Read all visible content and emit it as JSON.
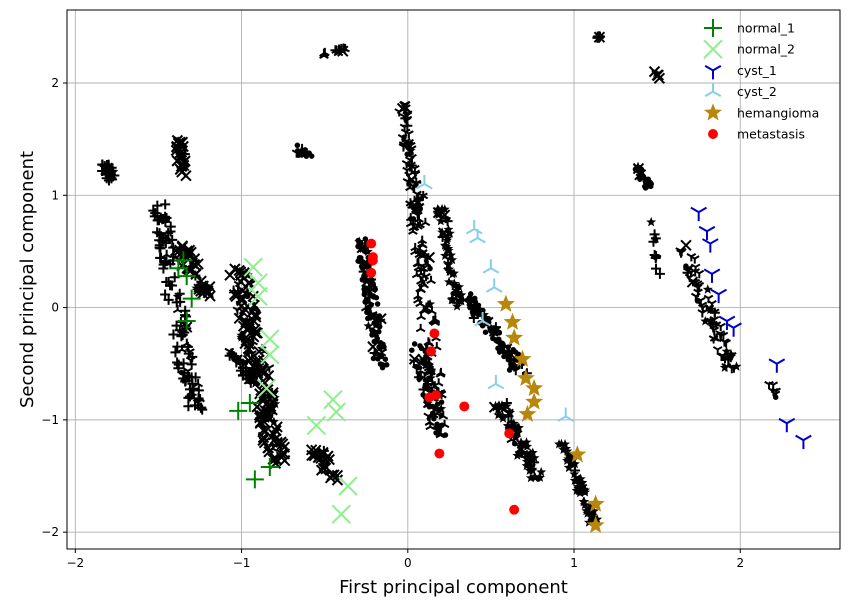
{
  "chart_data": {
    "type": "scatter",
    "title": "",
    "xlabel": "First principal component",
    "ylabel": "Second principal component",
    "xlim": [
      -2.05,
      2.6
    ],
    "ylim": [
      -2.15,
      2.65
    ],
    "xticks": [
      -2,
      -1,
      0,
      1,
      2
    ],
    "yticks": [
      -2,
      -1,
      0,
      1,
      2
    ],
    "xtick_labels": [
      "−2",
      "−1",
      "0",
      "1",
      "2"
    ],
    "ytick_labels": [
      "−2",
      "−1",
      "0",
      "1",
      "2"
    ],
    "grid": true,
    "legend_position": "top-right",
    "series": [
      {
        "name": "normal_1",
        "marker": "plus",
        "color": "#008000",
        "points": [
          [
            -1.35,
            0.42
          ],
          [
            -1.38,
            0.35
          ],
          [
            -1.33,
            0.28
          ],
          [
            -1.3,
            0.08
          ],
          [
            -1.33,
            -0.12
          ],
          [
            -1.02,
            -0.92
          ],
          [
            -0.95,
            -0.85
          ],
          [
            -0.92,
            -1.53
          ],
          [
            -0.83,
            -1.42
          ]
        ]
      },
      {
        "name": "normal_2",
        "marker": "x",
        "color": "#90ee90",
        "points": [
          [
            -0.93,
            0.36
          ],
          [
            -0.9,
            0.22
          ],
          [
            -0.9,
            0.1
          ],
          [
            -0.83,
            -0.28
          ],
          [
            -0.83,
            -0.42
          ],
          [
            -0.85,
            -0.72
          ],
          [
            -0.55,
            -1.05
          ],
          [
            -0.45,
            -0.82
          ],
          [
            -0.43,
            -0.93
          ],
          [
            -0.4,
            -1.84
          ],
          [
            -0.36,
            -1.59
          ]
        ]
      },
      {
        "name": "cyst_1",
        "marker": "tri_down",
        "color": "#0000cd",
        "points": [
          [
            1.75,
            0.85
          ],
          [
            1.8,
            0.68
          ],
          [
            1.82,
            0.57
          ],
          [
            1.83,
            0.3
          ],
          [
            1.87,
            0.12
          ],
          [
            1.92,
            -0.12
          ],
          [
            1.96,
            -0.18
          ],
          [
            2.22,
            -0.5
          ],
          [
            2.28,
            -1.03
          ],
          [
            2.38,
            -1.18
          ]
        ]
      },
      {
        "name": "cyst_2",
        "marker": "tri_up",
        "color": "#87ceeb",
        "points": [
          [
            0.1,
            1.1
          ],
          [
            0.4,
            0.7
          ],
          [
            0.42,
            0.62
          ],
          [
            0.5,
            0.35
          ],
          [
            0.52,
            0.18
          ],
          [
            0.45,
            -0.12
          ],
          [
            0.53,
            -0.68
          ],
          [
            0.95,
            -0.97
          ]
        ]
      },
      {
        "name": "hemangioma",
        "marker": "star",
        "color": "#b8860b",
        "points": [
          [
            0.59,
            0.03
          ],
          [
            0.63,
            -0.13
          ],
          [
            0.64,
            -0.27
          ],
          [
            0.69,
            -0.46
          ],
          [
            0.71,
            -0.63
          ],
          [
            0.76,
            -0.72
          ],
          [
            0.76,
            -0.84
          ],
          [
            0.72,
            -0.95
          ],
          [
            1.02,
            -1.31
          ],
          [
            1.13,
            -1.75
          ],
          [
            1.13,
            -1.94
          ]
        ]
      },
      {
        "name": "metastasis",
        "marker": "circle",
        "color": "#ff0000",
        "points": [
          [
            -0.22,
            0.57
          ],
          [
            -0.21,
            0.45
          ],
          [
            -0.21,
            0.42
          ],
          [
            -0.22,
            0.31
          ],
          [
            0.16,
            -0.23
          ],
          [
            0.14,
            -0.39
          ],
          [
            0.13,
            -0.8
          ],
          [
            0.17,
            -0.78
          ],
          [
            0.19,
            -1.3
          ],
          [
            0.34,
            -0.88
          ],
          [
            0.61,
            -1.12
          ],
          [
            0.64,
            -1.8
          ]
        ]
      }
    ]
  }
}
